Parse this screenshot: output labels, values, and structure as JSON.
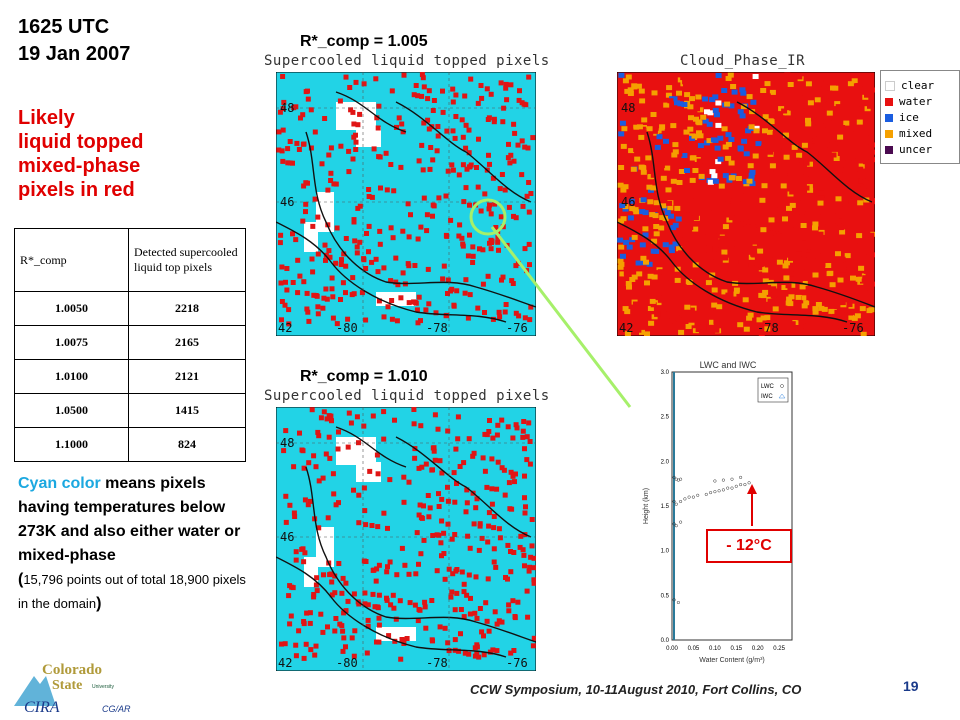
{
  "header": {
    "time": "1625 UTC",
    "date": "19 Jan 2007"
  },
  "legend_red": [
    "Likely",
    "liquid topped",
    "mixed-phase",
    "pixels in red"
  ],
  "map_top": {
    "label": "R*_comp = 1.005",
    "title": "Supercooled liquid topped pixels"
  },
  "map_bottom": {
    "label": "R*_comp = 1.010",
    "title": "Supercooled liquid topped pixels"
  },
  "map_axes": {
    "lat_ticks": [
      "48",
      "46",
      "42"
    ],
    "lon_ticks": [
      "-80",
      "-78",
      "-76"
    ]
  },
  "phase_map": {
    "title": "Cloud_Phase_IR",
    "legend": [
      {
        "label": "clear",
        "color": "#ffffff"
      },
      {
        "label": "water",
        "color": "#e81010"
      },
      {
        "label": "ice",
        "color": "#1a5de0"
      },
      {
        "label": "mixed",
        "color": "#f5a000"
      },
      {
        "label": "uncer",
        "color": "#4a0a50"
      }
    ],
    "lat_ticks": [
      "48",
      "46",
      "42"
    ],
    "lon_ticks": [
      "-78",
      "-76"
    ]
  },
  "table": {
    "headers": [
      "R*_comp",
      "Detected supercooled liquid top pixels"
    ],
    "rows": [
      [
        "1.0050",
        "2218"
      ],
      [
        "1.0075",
        "2165"
      ],
      [
        "1.0100",
        "2121"
      ],
      [
        "1.0500",
        "1415"
      ],
      [
        "1.1000",
        "824"
      ]
    ]
  },
  "cyan_note": {
    "highlight": "Cyan color",
    "text": " means pixels having temperatures below 273K and also either water or mixed-phase",
    "paren_open": "(",
    "detail": "15,796 points out of total 18,900 pixels in the domain",
    "paren_close": ")"
  },
  "profile_chart": {
    "title": "LWC and IWC",
    "legend": [
      "LWC",
      "IWC"
    ],
    "xlabel": "Water Content (g/m³)",
    "ylabel": "Height (km)",
    "xticks": [
      "0.00",
      "0.05",
      "0.10",
      "0.15",
      "0.20",
      "0.25"
    ],
    "yticks": [
      "0.0",
      "0.5",
      "1.0",
      "1.5",
      "2.0",
      "2.5",
      "3.0"
    ],
    "annotation": "- 12°C"
  },
  "chart_data": {
    "type": "scatter",
    "title": "LWC and IWC",
    "xlabel": "Water Content (g/m³)",
    "ylabel": "Height (km)",
    "xlim": [
      0,
      0.28
    ],
    "ylim": [
      0,
      3.0
    ],
    "series": [
      {
        "name": "LWC",
        "x": [
          0.005,
          0.01,
          0.015,
          0.02,
          0.005,
          0.01,
          0.02,
          0.03,
          0.04,
          0.05,
          0.06,
          0.08,
          0.09,
          0.1,
          0.11,
          0.12,
          0.13,
          0.14,
          0.15,
          0.16,
          0.17,
          0.18,
          0.1,
          0.12,
          0.14,
          0.16,
          0.005,
          0.01,
          0.02,
          0.005,
          0.015
        ],
        "y": [
          1.82,
          1.8,
          1.79,
          1.8,
          1.55,
          1.52,
          1.55,
          1.58,
          1.6,
          1.6,
          1.62,
          1.63,
          1.65,
          1.66,
          1.67,
          1.68,
          1.7,
          1.7,
          1.72,
          1.74,
          1.74,
          1.76,
          1.78,
          1.79,
          1.8,
          1.82,
          1.3,
          1.28,
          1.32,
          0.45,
          0.42
        ]
      },
      {
        "name": "IWC",
        "x": [],
        "y": []
      }
    ]
  },
  "footer": {
    "text": "CCW Symposium, 10-11August 2010, Fort Collins, CO",
    "page": "19"
  },
  "logos": {
    "csu_top": "Colorado",
    "csu_mid": "State",
    "csu_uni": "University",
    "cira": "CIRA",
    "cg": "CG/AR"
  }
}
